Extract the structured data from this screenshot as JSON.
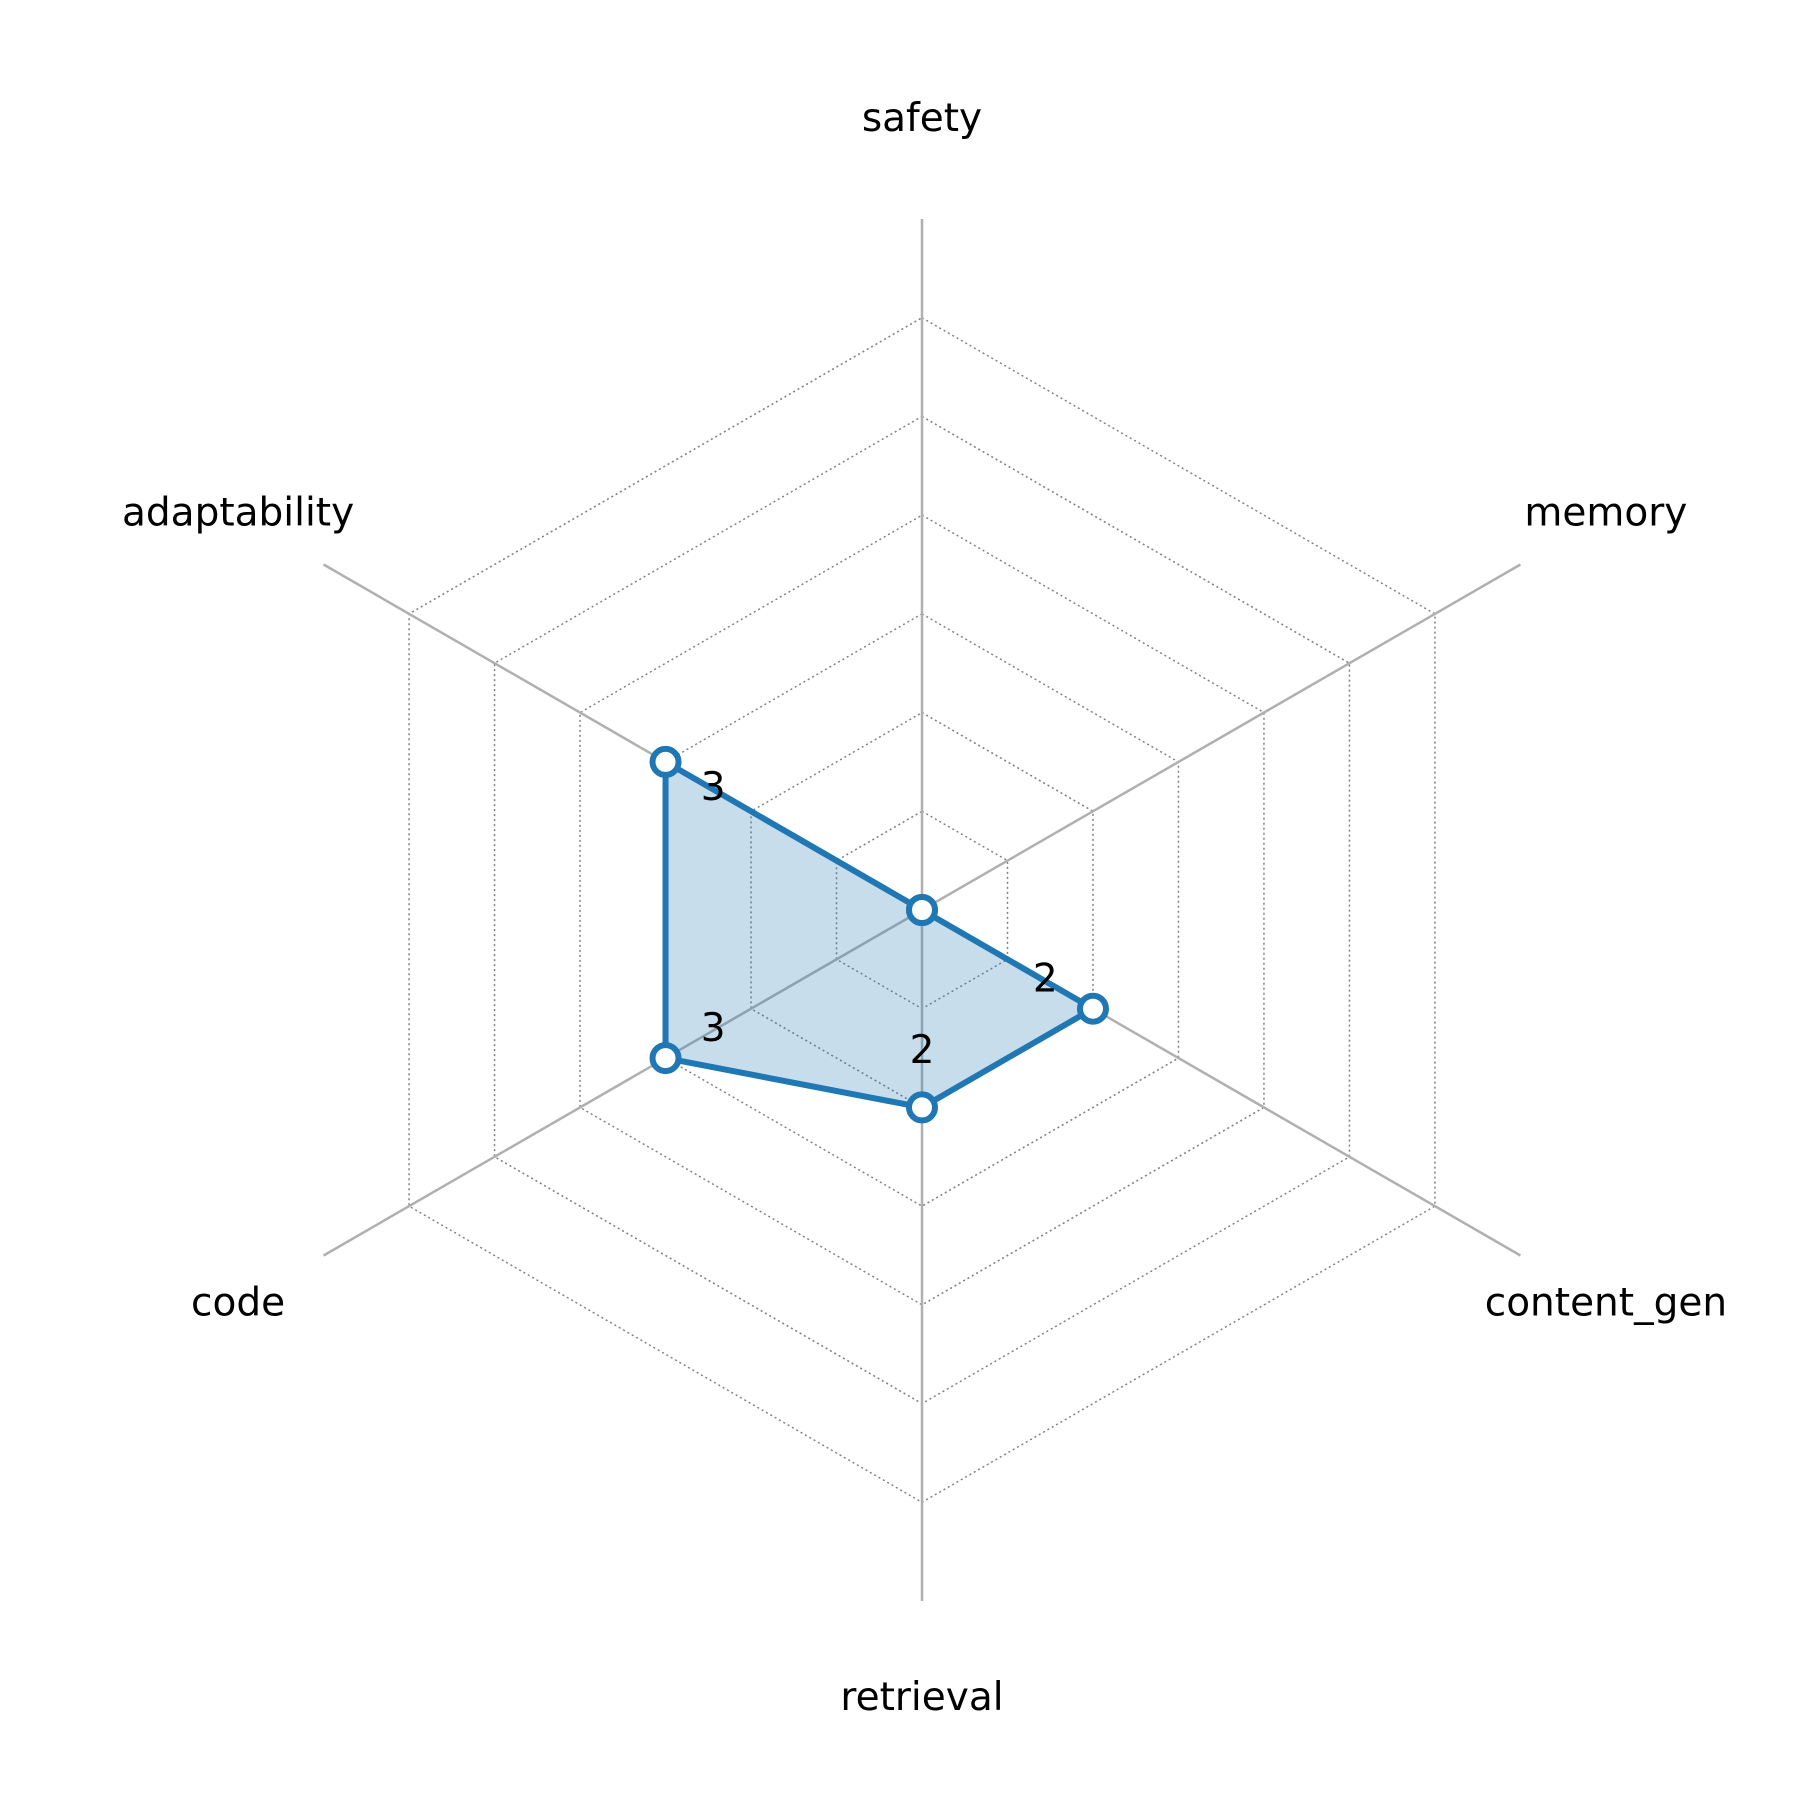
{
  "chart_data": {
    "type": "radar",
    "categories": [
      "safety",
      "memory",
      "content_gen",
      "retrieval",
      "code",
      "adaptability"
    ],
    "values": [
      0,
      0,
      2,
      2,
      3,
      3
    ],
    "color": "#1f77b4",
    "ylim": [
      0,
      7
    ],
    "yticks": [
      1,
      2,
      3,
      4,
      5,
      6
    ],
    "grid": true
  }
}
